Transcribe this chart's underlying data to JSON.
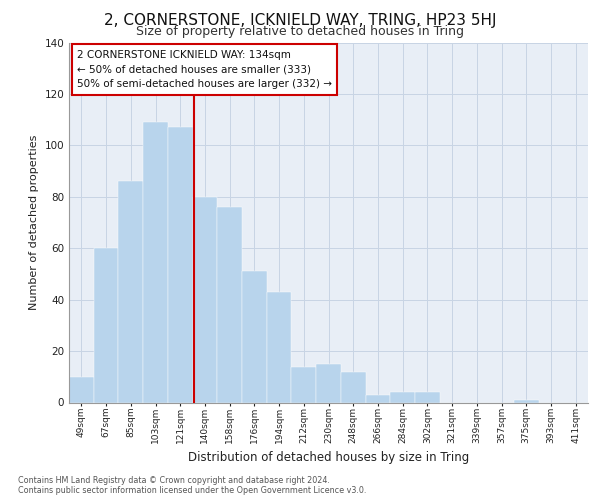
{
  "title": "2, CORNERSTONE, ICKNIELD WAY, TRING, HP23 5HJ",
  "subtitle": "Size of property relative to detached houses in Tring",
  "xlabel": "Distribution of detached houses by size in Tring",
  "ylabel": "Number of detached properties",
  "categories": [
    "49sqm",
    "67sqm",
    "85sqm",
    "103sqm",
    "121sqm",
    "140sqm",
    "158sqm",
    "176sqm",
    "194sqm",
    "212sqm",
    "230sqm",
    "248sqm",
    "266sqm",
    "284sqm",
    "302sqm",
    "321sqm",
    "339sqm",
    "357sqm",
    "375sqm",
    "393sqm",
    "411sqm"
  ],
  "values": [
    10,
    60,
    86,
    109,
    107,
    80,
    76,
    51,
    43,
    14,
    15,
    12,
    3,
    4,
    4,
    0,
    0,
    0,
    1,
    0,
    0
  ],
  "bar_color": "#b8d4ec",
  "bar_edge_color": "#b8d4ec",
  "vline_color": "#cc0000",
  "annotation_box_text": "2 CORNERSTONE ICKNIELD WAY: 134sqm\n← 50% of detached houses are smaller (333)\n50% of semi-detached houses are larger (332) →",
  "annotation_box_color": "#cc0000",
  "grid_color": "#c8d4e4",
  "plot_bg_color": "#e8eef6",
  "fig_bg_color": "#ffffff",
  "footer_text": "Contains HM Land Registry data © Crown copyright and database right 2024.\nContains public sector information licensed under the Open Government Licence v3.0.",
  "ylim": [
    0,
    140
  ],
  "yticks": [
    0,
    20,
    40,
    60,
    80,
    100,
    120,
    140
  ],
  "title_fontsize": 11,
  "subtitle_fontsize": 9,
  "vline_x_data": 4.57
}
